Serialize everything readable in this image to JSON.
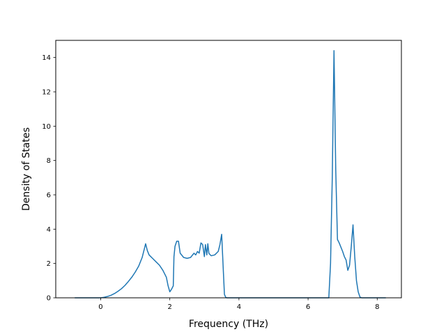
{
  "chart_data": {
    "type": "line",
    "title": "",
    "xlabel": "Frequency (THz)",
    "ylabel": "Density of States",
    "xlim": [
      -1.3,
      8.7
    ],
    "ylim": [
      0,
      15
    ],
    "xticks": [
      0,
      2,
      4,
      6,
      8
    ],
    "yticks": [
      0,
      2,
      4,
      6,
      8,
      10,
      12,
      14
    ],
    "grid": false,
    "legend": "none",
    "colors": {
      "line": "#1f77b4",
      "axes": "#000000",
      "background": "#ffffff"
    },
    "series": [
      {
        "x": [
          -0.75,
          -0.4,
          0.0,
          0.1,
          0.2,
          0.3,
          0.4,
          0.5,
          0.6,
          0.7,
          0.8,
          0.9,
          1.0,
          1.1,
          1.2,
          1.3,
          1.35,
          1.4,
          1.45,
          1.5,
          1.6,
          1.7,
          1.8,
          1.9,
          1.95,
          2.0,
          2.05,
          2.1,
          2.12,
          2.15,
          2.2,
          2.25,
          2.3,
          2.4,
          2.5,
          2.6,
          2.7,
          2.75,
          2.8,
          2.85,
          2.9,
          2.95,
          3.0,
          3.03,
          3.07,
          3.1,
          3.13,
          3.17,
          3.2,
          3.3,
          3.4,
          3.45,
          3.5,
          3.55,
          3.58,
          3.62,
          3.65,
          4.0,
          6.0,
          6.6,
          6.65,
          6.7,
          6.75,
          6.8,
          6.85,
          6.9,
          7.0,
          7.05,
          7.1,
          7.15,
          7.2,
          7.25,
          7.3,
          7.35,
          7.4,
          7.45,
          7.5,
          7.55,
          8.25
        ],
        "y": [
          0.0,
          0.0,
          0.0,
          0.03,
          0.08,
          0.15,
          0.25,
          0.38,
          0.53,
          0.72,
          0.95,
          1.2,
          1.5,
          1.85,
          2.35,
          3.15,
          2.75,
          2.5,
          2.4,
          2.3,
          2.1,
          1.9,
          1.6,
          1.2,
          0.7,
          0.35,
          0.5,
          0.7,
          2.4,
          3.0,
          3.3,
          3.3,
          2.6,
          2.35,
          2.3,
          2.35,
          2.6,
          2.5,
          2.7,
          2.6,
          3.2,
          3.1,
          2.4,
          3.1,
          2.5,
          3.15,
          2.6,
          2.5,
          2.45,
          2.5,
          2.7,
          3.1,
          3.7,
          1.5,
          0.2,
          0.02,
          0.0,
          0.0,
          0.0,
          0.0,
          2.0,
          7.0,
          14.4,
          7.5,
          3.4,
          3.2,
          2.7,
          2.4,
          2.2,
          1.6,
          1.9,
          3.0,
          4.25,
          2.4,
          1.0,
          0.35,
          0.05,
          0.0,
          0.0
        ]
      }
    ]
  }
}
